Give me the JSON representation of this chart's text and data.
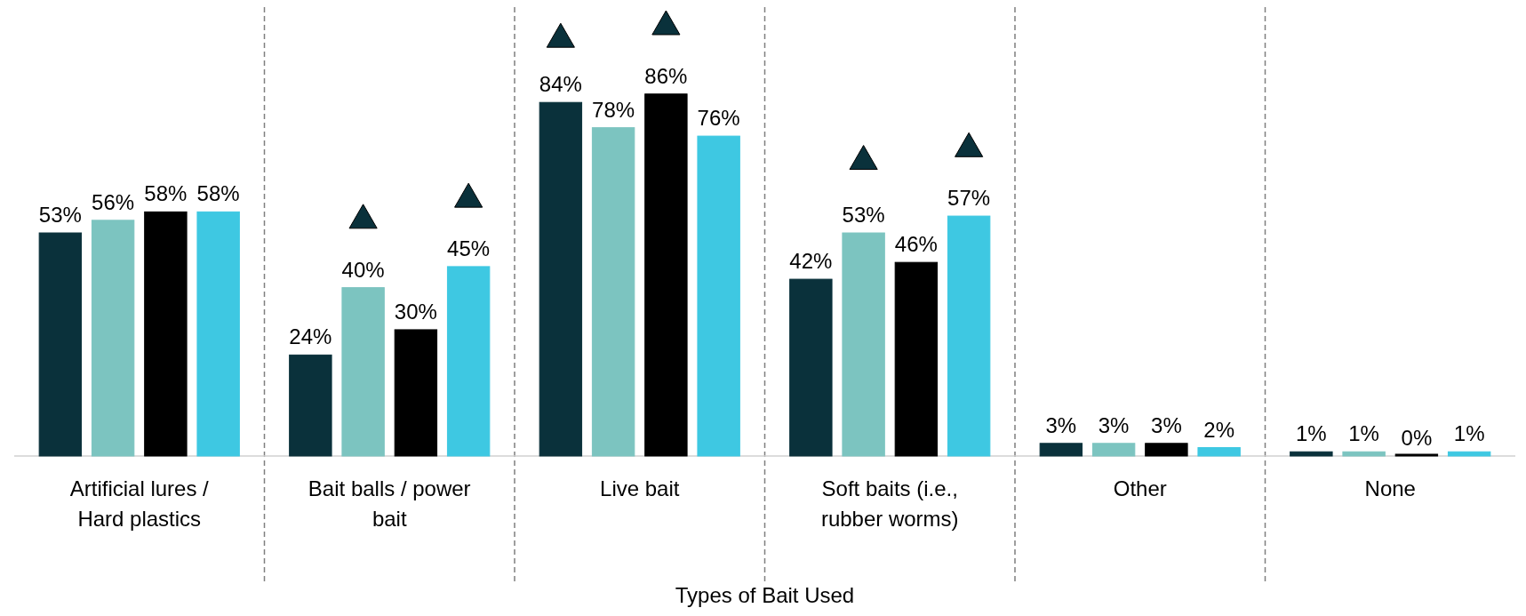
{
  "chart_data": {
    "type": "bar",
    "xlabel": "Types of Bait Used",
    "categories": [
      "Artificial lures / Hard plastics",
      "Bait balls / power bait",
      "Live bait",
      "Soft baits (i.e., rubber worms)",
      "Other",
      "None"
    ],
    "series": [
      {
        "color": "#0a313b",
        "values": [
          53,
          24,
          84,
          42,
          3,
          1
        ],
        "value_labels": [
          "53%",
          "24%",
          "84%",
          "42%",
          "3%",
          "1%"
        ]
      },
      {
        "color": "#7cc4c0",
        "values": [
          56,
          40,
          78,
          53,
          3,
          1
        ],
        "value_labels": [
          "56%",
          "40%",
          "78%",
          "53%",
          "3%",
          "1%"
        ]
      },
      {
        "color": "#000000",
        "values": [
          58,
          30,
          86,
          46,
          3,
          0
        ],
        "value_labels": [
          "58%",
          "30%",
          "86%",
          "46%",
          "3%",
          "0%"
        ]
      },
      {
        "color": "#3ec8e2",
        "values": [
          58,
          45,
          76,
          57,
          2,
          1
        ],
        "value_labels": [
          "58%",
          "45%",
          "76%",
          "57%",
          "2%",
          "1%"
        ]
      },
      {
        "type": "scatter",
        "color": "#0a313b",
        "x": [
          "Live bait"
        ],
        "values": [
          99
        ]
      },
      {
        "type": "scatter",
        "color": "#0a313b",
        "x": [
          "Bait balls / power bait",
          "Soft baits (i.e., rubber worms)"
        ],
        "values": [
          56,
          70
        ]
      },
      {
        "type": "scatter",
        "color": "#0a313b",
        "x": [
          "Live bait"
        ],
        "values": [
          102
        ]
      },
      {
        "type": "scatter",
        "color": "#0a313b",
        "x": [
          "Bait balls / power bait",
          "Soft baits (i.e., rubber worms)"
        ],
        "values": [
          61,
          73
        ]
      }
    ],
    "marker": "triangle"
  }
}
